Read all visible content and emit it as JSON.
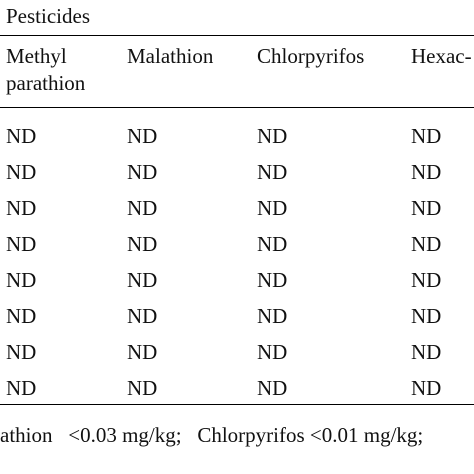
{
  "table": {
    "group_header": "Pesticides",
    "columns": [
      {
        "line1": "Methyl",
        "line2": "parathion"
      },
      {
        "line1": "Malathion",
        "line2": ""
      },
      {
        "line1": "Chlorpyrifos",
        "line2": ""
      },
      {
        "line1": "Hexac-",
        "line2": ""
      }
    ],
    "rows": [
      [
        "ND",
        "ND",
        "ND",
        "ND"
      ],
      [
        "ND",
        "ND",
        "ND",
        "ND"
      ],
      [
        "ND",
        "ND",
        "ND",
        "ND"
      ],
      [
        "ND",
        "ND",
        "ND",
        "ND"
      ],
      [
        "ND",
        "ND",
        "ND",
        "ND"
      ],
      [
        "ND",
        "ND",
        "ND",
        "ND"
      ],
      [
        "ND",
        "ND",
        "ND",
        "ND"
      ],
      [
        "ND",
        "ND",
        "ND",
        "ND"
      ]
    ]
  },
  "footnote": "athion   <0.03 mg/kg;   Chlorpyrifos <0.01 mg/kg;"
}
